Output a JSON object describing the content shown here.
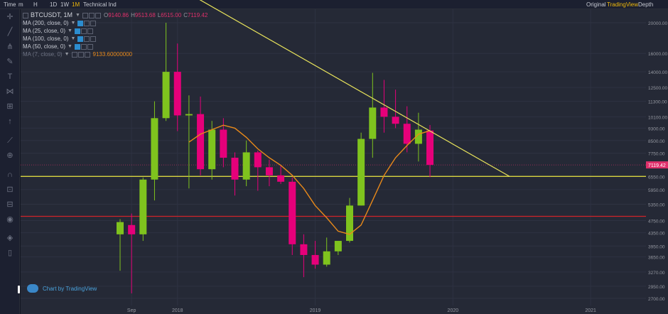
{
  "topbar": {
    "time_label": "Time",
    "intervals": [
      "m",
      "H",
      "1D",
      "1W",
      "1M"
    ],
    "active_interval": "1M",
    "technical": "Technical Ind",
    "tabs": [
      "Original",
      "TradingView",
      "Depth"
    ],
    "active_tab": "TradingView"
  },
  "legend": {
    "symbol": "BTCUSDT, 1M",
    "open_key": "O",
    "open": "9140.86",
    "high_key": "H",
    "high": "9513.68",
    "low_key": "L",
    "low": "6515.00",
    "close_key": "C",
    "close": "7119.42",
    "studies": [
      {
        "label": "MA (200, close, 0)"
      },
      {
        "label": "MA (25, close, 0)"
      },
      {
        "label": "MA (100, close, 0)"
      },
      {
        "label": "MA (50, close, 0)"
      },
      {
        "label": "MA (7, close, 0)",
        "value": "9133.60000000"
      }
    ]
  },
  "watermark": "Chart by TradingView",
  "colors": {
    "up": "#7fc31e",
    "down": "#e6007a",
    "ma": "#e8891a",
    "trend": "#e9e45b",
    "support": "#d8d540",
    "resistance": "#d0232a",
    "price_tag": "#e0306b"
  },
  "icons": [
    "crosshair-icon",
    "trendline-icon",
    "pitchfork-icon",
    "brush-icon",
    "text-icon",
    "pattern-icon",
    "measure-icon",
    "arrow-up-icon",
    "ruler-icon",
    "zoom-icon",
    "magnet-icon",
    "lock-icon",
    "unlock-icon",
    "eye-icon",
    "layers-icon",
    "trash-icon"
  ],
  "chart_data": {
    "type": "candlestick",
    "symbol": "BTCUSDT",
    "interval": "1M",
    "y_scale": "log",
    "y_tick_labels": [
      "20000.00",
      "16000.00",
      "14000.00",
      "12500.00",
      "11300.00",
      "10100.00",
      "9300.00",
      "8500.00",
      "7750.00",
      "6550.00",
      "5950.00",
      "5350.00",
      "4750.00",
      "4350.00",
      "3950.00",
      "3650.00",
      "3270.00",
      "2950.00",
      "2700.00"
    ],
    "y_ticks": [
      20000,
      16000,
      14000,
      12500,
      11300,
      10100,
      9300,
      8500,
      7750,
      6550,
      5950,
      5350,
      4750,
      4350,
      3950,
      3650,
      3270,
      2950,
      2700
    ],
    "x_tick_labels": [
      "Sep",
      "2018",
      "2019",
      "2020",
      "2021"
    ],
    "x_ticks": [
      "2017-09",
      "2018-01",
      "2019-01",
      "2020-01",
      "2021-01"
    ],
    "candles": [
      {
        "t": "2017-08",
        "o": 4300,
        "h": 4800,
        "l": 3300,
        "c": 4700
      },
      {
        "t": "2017-09",
        "o": 4600,
        "h": 5000,
        "l": 2800,
        "c": 4300
      },
      {
        "t": "2017-10",
        "o": 4300,
        "h": 6500,
        "l": 4100,
        "c": 6400
      },
      {
        "t": "2017-11",
        "o": 6400,
        "h": 11300,
        "l": 5500,
        "c": 10000
      },
      {
        "t": "2017-12",
        "o": 10000,
        "h": 20000,
        "l": 9800,
        "c": 14000
      },
      {
        "t": "2018-01",
        "o": 14000,
        "h": 17200,
        "l": 9100,
        "c": 10200
      },
      {
        "t": "2018-02",
        "o": 10200,
        "h": 11800,
        "l": 6000,
        "c": 10300
      },
      {
        "t": "2018-03",
        "o": 10300,
        "h": 11700,
        "l": 6600,
        "c": 6900
      },
      {
        "t": "2018-04",
        "o": 6900,
        "h": 9800,
        "l": 6400,
        "c": 9200
      },
      {
        "t": "2018-05",
        "o": 9200,
        "h": 10000,
        "l": 7000,
        "c": 7500
      },
      {
        "t": "2018-06",
        "o": 7500,
        "h": 7800,
        "l": 5700,
        "c": 6400
      },
      {
        "t": "2018-07",
        "o": 6400,
        "h": 8500,
        "l": 6100,
        "c": 7800
      },
      {
        "t": "2018-08",
        "o": 7800,
        "h": 7900,
        "l": 5900,
        "c": 7000
      },
      {
        "t": "2018-09",
        "o": 7000,
        "h": 7400,
        "l": 6100,
        "c": 6600
      },
      {
        "t": "2018-10",
        "o": 6600,
        "h": 7100,
        "l": 6200,
        "c": 6300
      },
      {
        "t": "2018-11",
        "o": 6300,
        "h": 6500,
        "l": 3700,
        "c": 4000
      },
      {
        "t": "2018-12",
        "o": 4000,
        "h": 4300,
        "l": 3150,
        "c": 3700
      },
      {
        "t": "2019-01",
        "o": 3700,
        "h": 4100,
        "l": 3350,
        "c": 3450
      },
      {
        "t": "2019-02",
        "o": 3450,
        "h": 4200,
        "l": 3400,
        "c": 3800
      },
      {
        "t": "2019-03",
        "o": 3800,
        "h": 4100,
        "l": 3700,
        "c": 4100
      },
      {
        "t": "2019-04",
        "o": 4100,
        "h": 5600,
        "l": 4050,
        "c": 5300
      },
      {
        "t": "2019-05",
        "o": 5300,
        "h": 9000,
        "l": 5300,
        "c": 8600
      },
      {
        "t": "2019-06",
        "o": 8600,
        "h": 13900,
        "l": 7500,
        "c": 10800
      },
      {
        "t": "2019-07",
        "o": 10800,
        "h": 13200,
        "l": 9000,
        "c": 10100
      },
      {
        "t": "2019-08",
        "o": 10100,
        "h": 12300,
        "l": 9300,
        "c": 9600
      },
      {
        "t": "2019-09",
        "o": 9600,
        "h": 10900,
        "l": 7800,
        "c": 8300
      },
      {
        "t": "2019-10",
        "o": 8300,
        "h": 10400,
        "l": 7300,
        "c": 9200
      },
      {
        "t": "2019-11",
        "o": 9140.86,
        "h": 9513.68,
        "l": 6515.0,
        "c": 7119.42
      }
    ],
    "ma7": [
      null,
      null,
      null,
      null,
      null,
      null,
      8400,
      8900,
      9200,
      9500,
      9300,
      8700,
      8000,
      7500,
      7100,
      6600,
      6000,
      5300,
      4850,
      4400,
      4300,
      4600,
      5500,
      6600,
      7500,
      8200,
      8900,
      9133.6
    ],
    "trendline": [
      {
        "t": "2017-12",
        "v": 28000
      },
      {
        "t": "2020-05",
        "v": 6550
      }
    ],
    "support_level": 6550,
    "resistance_level": 4900,
    "last_price": "7119.42"
  }
}
